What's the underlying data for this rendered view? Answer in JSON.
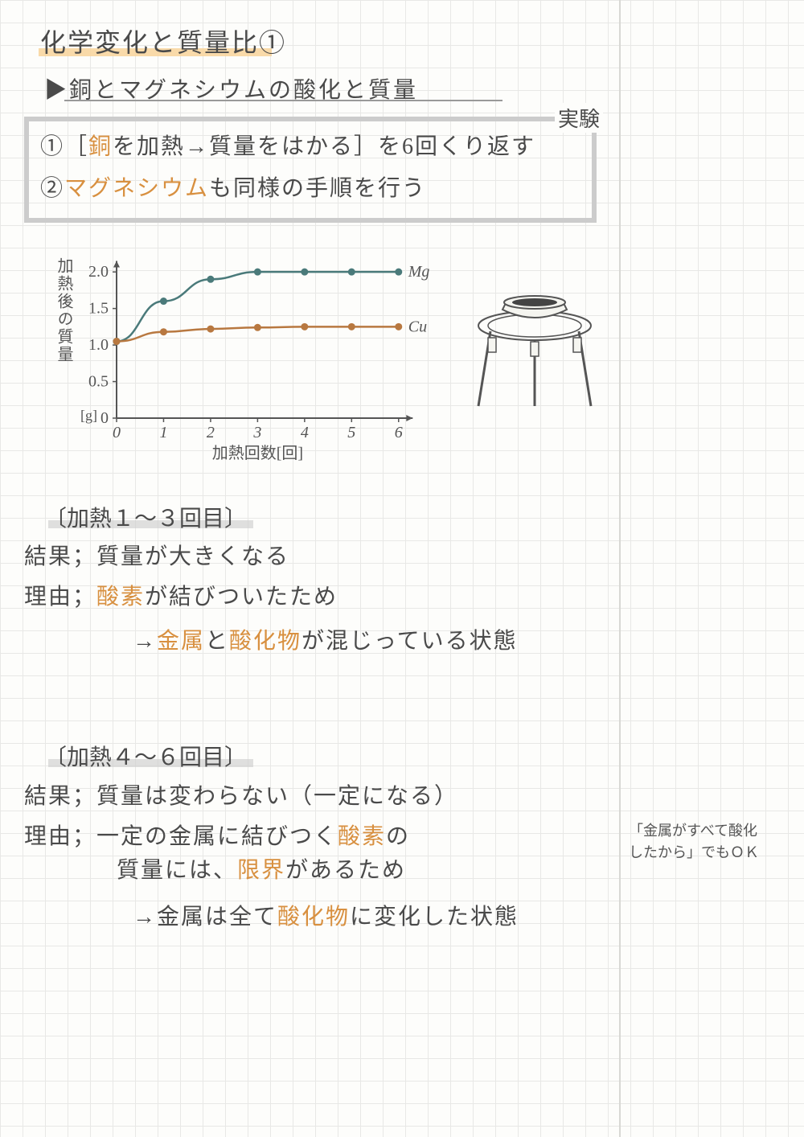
{
  "title": "化学変化と質量比①",
  "subtitle": "▶銅とマグネシウムの酸化と質量",
  "experiment": {
    "tag": "実験",
    "line1_pre": "①［",
    "line1_cu": "銅",
    "line1_post": "を加熱→質量をはかる］を6回くり返す",
    "line2_pre": "②",
    "line2_mg": "マグネシウム",
    "line2_post": "も同様の手順を行う"
  },
  "chart": {
    "ylabel": "加熱後の質量",
    "yunit": "[g]",
    "xlabel": "加熱回数[回]",
    "yticks": [
      "0",
      "0.5",
      "1.0",
      "1.5",
      "2.0"
    ],
    "xticks": [
      "0",
      "1",
      "2",
      "3",
      "4",
      "5",
      "6"
    ],
    "mg_label": "Mg",
    "cu_label": "Cu",
    "mg_color": "#4a7a7a",
    "cu_color": "#b87840",
    "axis_color": "#555555",
    "mg_points": [
      [
        0,
        1.05
      ],
      [
        1,
        1.6
      ],
      [
        2,
        1.9
      ],
      [
        3,
        2.0
      ],
      [
        4,
        2.0
      ],
      [
        5,
        2.0
      ],
      [
        6,
        2.0
      ]
    ],
    "cu_points": [
      [
        0,
        1.05
      ],
      [
        1,
        1.18
      ],
      [
        2,
        1.22
      ],
      [
        3,
        1.24
      ],
      [
        4,
        1.25
      ],
      [
        5,
        1.25
      ],
      [
        6,
        1.25
      ]
    ],
    "xlim": [
      0,
      6.5
    ],
    "ylim": [
      0,
      2.2
    ]
  },
  "section1": {
    "heading": "〔加熱１～３回目〕",
    "result_label": "結果；",
    "result": "質量が大きくなる",
    "reason_label": "理由；",
    "reason_o1": "酸素",
    "reason_t1": "が結びついたため",
    "arrow": "→",
    "arrow_o1": "金属",
    "arrow_t1": "と",
    "arrow_o2": "酸化物",
    "arrow_t2": "が混じっている状態"
  },
  "section2": {
    "heading": "〔加熱４～６回目〕",
    "result_label": "結果；",
    "result": "質量は変わらない（一定になる）",
    "reason_label": "理由；",
    "reason_t1": "一定の金属に結びつく",
    "reason_o1": "酸素",
    "reason_t2": "の",
    "reason_t3": "質量には、",
    "reason_o2": "限界",
    "reason_t4": "があるため",
    "arrow": "→金属は全て",
    "arrow_o1": "酸化物",
    "arrow_t1": "に変化した状態"
  },
  "sidenote": {
    "line1": "「金属がすべて酸化",
    "line2": "したから」でもＯＫ"
  }
}
